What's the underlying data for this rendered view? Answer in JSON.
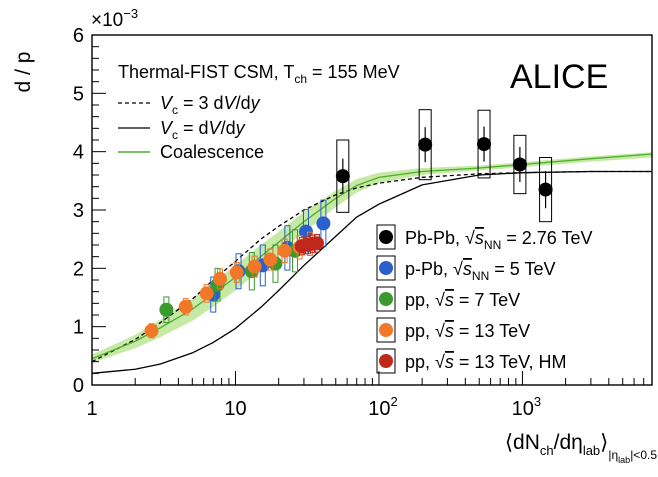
{
  "chart_data": {
    "type": "scatter",
    "title": "",
    "xlabel": "⟨dNch/dηlab⟩|ηlab|<0.5",
    "xlabel_parts": {
      "open": "⟨dN",
      "ch": "ch",
      "mid": "/dη",
      "lab": "lab",
      "close": "⟩",
      "sub1": "|η",
      "sub2": "lab",
      "sub3": "|<0.5"
    },
    "ylabel": "d / p",
    "y_multiplier": "×10",
    "y_multiplier_exp": "−3",
    "xscale": "log",
    "xlim": [
      1,
      8000
    ],
    "ylim": [
      0,
      6
    ],
    "x_ticks": [
      {
        "value": 1,
        "label": "1"
      },
      {
        "value": 10,
        "label": "10"
      },
      {
        "value": 100,
        "label": "10",
        "exp": "2"
      },
      {
        "value": 1000,
        "label": "10",
        "exp": "3"
      }
    ],
    "y_ticks": [
      0,
      1,
      2,
      3,
      4,
      5,
      6
    ],
    "logo": "ALICE",
    "model_header": "Thermal-FIST CSM, T",
    "model_header_sub": "ch",
    "model_header_value": " = 155 MeV",
    "model_legend": [
      {
        "name": "Vc = 3 dV/dy",
        "style": "dashed",
        "color": "#000000"
      },
      {
        "name": "Vc = dV/dy",
        "style": "solid",
        "color": "#000000"
      },
      {
        "name": "Coalescence",
        "style": "solid",
        "color": "#4caf2a"
      }
    ],
    "data_legend": [
      {
        "system": "Pb-Pb",
        "energy_var": "sNN",
        "energy": "2.76 TeV",
        "suffix": "",
        "color": "#000000"
      },
      {
        "system": "p-Pb",
        "energy_var": "sNN",
        "energy": "5 TeV",
        "suffix": "",
        "color": "#2b5fcb"
      },
      {
        "system": "pp",
        "energy_var": "s",
        "energy": "7 TeV",
        "suffix": "",
        "color": "#3a9a2e"
      },
      {
        "system": "pp",
        "energy_var": "s",
        "energy": "13 TeV",
        "suffix": "",
        "color": "#f07828"
      },
      {
        "system": "pp",
        "energy_var": "s",
        "energy": "13 TeV",
        "suffix": ", HM",
        "color": "#c0281c"
      }
    ],
    "series": [
      {
        "name": "Pb-Pb √sNN = 2.76 TeV",
        "color": "#000000",
        "syst_fill": "none",
        "points": [
          {
            "x": 56,
            "y": 3.58,
            "stat": 0.3,
            "sys": 0.62
          },
          {
            "x": 210,
            "y": 4.12,
            "stat": 0.3,
            "sys": 0.6
          },
          {
            "x": 540,
            "y": 4.13,
            "stat": 0.3,
            "sys": 0.58
          },
          {
            "x": 960,
            "y": 3.78,
            "stat": 0.3,
            "sys": 0.5
          },
          {
            "x": 1450,
            "y": 3.35,
            "stat": 0.32,
            "sys": 0.55
          }
        ]
      },
      {
        "name": "p-Pb √sNN = 5 TeV",
        "color": "#2b5fcb",
        "points": [
          {
            "x": 7.0,
            "y": 1.55,
            "stat": 0.05,
            "sys": 0.3
          },
          {
            "x": 10.5,
            "y": 1.95,
            "stat": 0.05,
            "sys": 0.3
          },
          {
            "x": 15.5,
            "y": 2.05,
            "stat": 0.05,
            "sys": 0.35
          },
          {
            "x": 23,
            "y": 2.35,
            "stat": 0.06,
            "sys": 0.38
          },
          {
            "x": 31,
            "y": 2.63,
            "stat": 0.06,
            "sys": 0.38
          },
          {
            "x": 41,
            "y": 2.77,
            "stat": 0.07,
            "sys": 0.4
          }
        ]
      },
      {
        "name": "pp √s = 7 TeV",
        "color": "#3a9a2e",
        "points": [
          {
            "x": 3.3,
            "y": 1.29,
            "stat": 0.06,
            "sys": 0.22
          },
          {
            "x": 7.5,
            "y": 1.72,
            "stat": 0.06,
            "sys": 0.28
          },
          {
            "x": 13,
            "y": 1.95,
            "stat": 0.06,
            "sys": 0.32
          },
          {
            "x": 19,
            "y": 2.08,
            "stat": 0.06,
            "sys": 0.32
          },
          {
            "x": 26,
            "y": 2.3,
            "stat": 0.07,
            "sys": 0.36
          }
        ]
      },
      {
        "name": "pp √s = 13 TeV",
        "color": "#f07828",
        "points": [
          {
            "x": 2.6,
            "y": 0.93,
            "stat": 0.05,
            "sys": 0.12
          },
          {
            "x": 4.5,
            "y": 1.34,
            "stat": 0.05,
            "sys": 0.14
          },
          {
            "x": 6.3,
            "y": 1.57,
            "stat": 0.05,
            "sys": 0.15
          },
          {
            "x": 7.8,
            "y": 1.82,
            "stat": 0.05,
            "sys": 0.17
          },
          {
            "x": 10.2,
            "y": 1.93,
            "stat": 0.05,
            "sys": 0.17
          },
          {
            "x": 13.6,
            "y": 2.03,
            "stat": 0.05,
            "sys": 0.18
          },
          {
            "x": 17.5,
            "y": 2.15,
            "stat": 0.05,
            "sys": 0.18
          },
          {
            "x": 22,
            "y": 2.3,
            "stat": 0.05,
            "sys": 0.2
          },
          {
            "x": 28,
            "y": 2.36,
            "stat": 0.06,
            "sys": 0.2
          },
          {
            "x": 33,
            "y": 2.42,
            "stat": 0.06,
            "sys": 0.2
          }
        ]
      },
      {
        "name": "pp √s = 13 TeV, HM",
        "color": "#c0281c",
        "points": [
          {
            "x": 29,
            "y": 2.38,
            "stat": 0.08,
            "sys": 0.15
          },
          {
            "x": 32,
            "y": 2.4,
            "stat": 0.08,
            "sys": 0.15
          },
          {
            "x": 34.5,
            "y": 2.42,
            "stat": 0.08,
            "sys": 0.15
          },
          {
            "x": 37,
            "y": 2.43,
            "stat": 0.08,
            "sys": 0.15
          }
        ]
      }
    ],
    "curves": [
      {
        "name": "Vc = 3 dV/dy",
        "style": "dashed",
        "color": "#000000",
        "x": [
          1,
          2,
          3,
          5,
          7,
          10,
          15,
          20,
          30,
          50,
          70,
          100,
          200,
          500,
          1000,
          3000,
          8000
        ],
        "y": [
          0.4,
          0.78,
          1.07,
          1.47,
          1.8,
          2.12,
          2.5,
          2.72,
          3.0,
          3.26,
          3.38,
          3.46,
          3.56,
          3.62,
          3.64,
          3.66,
          3.66
        ]
      },
      {
        "name": "Vc = dV/dy",
        "style": "solid",
        "color": "#000000",
        "x": [
          1,
          2,
          3,
          5,
          7,
          10,
          15,
          20,
          30,
          50,
          70,
          100,
          200,
          500,
          1000,
          3000,
          8000
        ],
        "y": [
          0.2,
          0.27,
          0.36,
          0.55,
          0.73,
          0.97,
          1.33,
          1.62,
          2.05,
          2.55,
          2.88,
          3.1,
          3.43,
          3.6,
          3.64,
          3.66,
          3.66
        ]
      },
      {
        "name": "Coalescence",
        "style": "solid",
        "color": "#4caf2a",
        "x": [
          1,
          2,
          3,
          5,
          7,
          10,
          15,
          20,
          30,
          50,
          70,
          100,
          200,
          500,
          1000,
          3000,
          8000
        ],
        "y": [
          0.45,
          0.75,
          0.98,
          1.3,
          1.56,
          1.85,
          2.2,
          2.45,
          2.8,
          3.2,
          3.42,
          3.56,
          3.66,
          3.72,
          3.78,
          3.88,
          3.96
        ],
        "band_lo": [
          0.38,
          0.63,
          0.82,
          1.1,
          1.34,
          1.62,
          1.98,
          2.25,
          2.62,
          3.05,
          3.3,
          3.46,
          3.6,
          3.68,
          3.73,
          3.83,
          3.9
        ],
        "band_hi": [
          0.52,
          0.86,
          1.12,
          1.48,
          1.76,
          2.05,
          2.4,
          2.63,
          2.97,
          3.33,
          3.53,
          3.64,
          3.72,
          3.76,
          3.82,
          3.92,
          3.99
        ]
      }
    ]
  }
}
